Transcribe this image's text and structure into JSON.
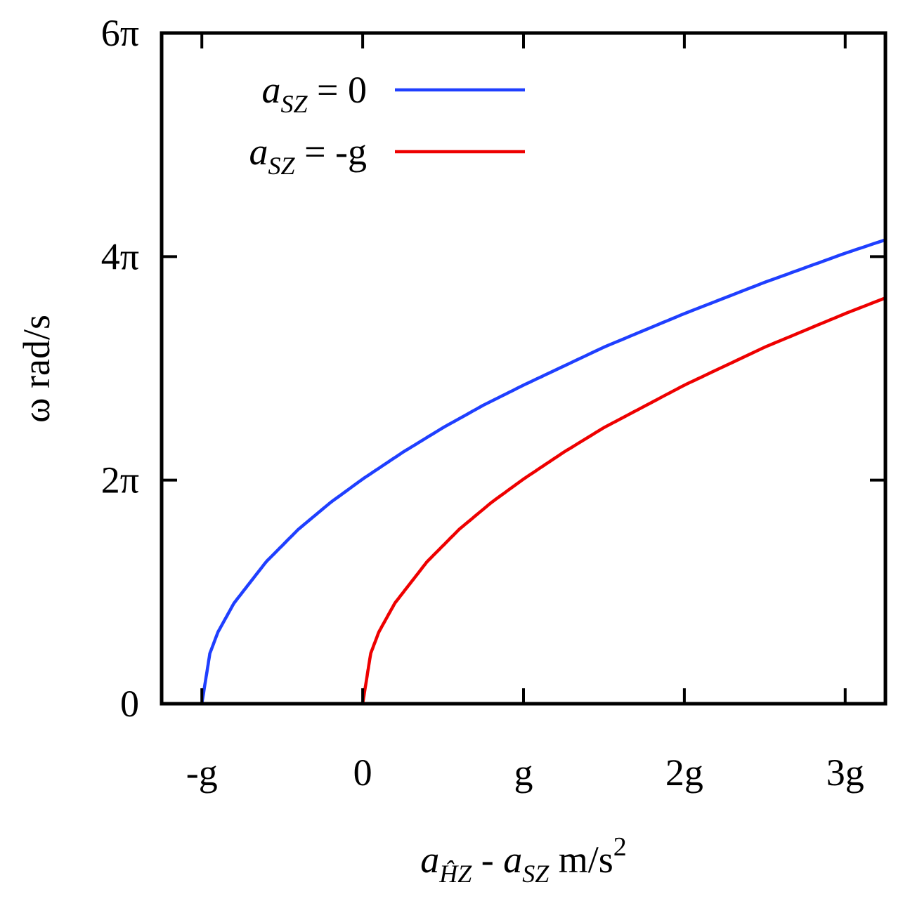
{
  "chart_data": {
    "type": "line",
    "title": "",
    "xlabel": {
      "main": "a",
      "sub": "ĤZ",
      "rest1": " - ",
      "main2": "a",
      "sub2": "SZ",
      "unit": " m/s",
      "sup": "2"
    },
    "ylabel": "ω rad/s",
    "xlim": [
      -1.25,
      3.25
    ],
    "ylim": [
      0,
      6
    ],
    "x_ticks": [
      {
        "value": -1,
        "label": "-g"
      },
      {
        "value": 0,
        "label": "0"
      },
      {
        "value": 1,
        "label": "g"
      },
      {
        "value": 2,
        "label": "2g"
      },
      {
        "value": 3,
        "label": "3g"
      }
    ],
    "y_ticks": [
      {
        "value": 0,
        "label": "0"
      },
      {
        "value": 2,
        "label": "2π"
      },
      {
        "value": 4,
        "label": "4π"
      },
      {
        "value": 6,
        "label": "6π"
      }
    ],
    "x_unit": "g",
    "y_unit": "π rad/s",
    "legend_position": "top-left",
    "grid": false,
    "series": [
      {
        "name": "a_SZ = 0",
        "legend": {
          "main": "a",
          "sub": "SZ",
          "rest": " = 0"
        },
        "color": "#1f3fff",
        "x": [
          -1.0,
          -0.95,
          -0.9,
          -0.8,
          -0.6,
          -0.4,
          -0.2,
          0.0,
          0.25,
          0.5,
          0.75,
          1.0,
          1.5,
          2.0,
          2.5,
          3.0,
          3.25
        ],
        "y": [
          0.0,
          0.45,
          0.64,
          0.9,
          1.27,
          1.56,
          1.8,
          2.01,
          2.25,
          2.47,
          2.67,
          2.85,
          3.19,
          3.49,
          3.77,
          4.03,
          4.15
        ]
      },
      {
        "name": "a_SZ = -g",
        "legend": {
          "main": "a",
          "sub": "SZ",
          "rest": " = -g"
        },
        "color": "#ee0000",
        "x": [
          0.0,
          0.05,
          0.1,
          0.2,
          0.4,
          0.6,
          0.8,
          1.0,
          1.25,
          1.5,
          2.0,
          2.5,
          3.0,
          3.25
        ],
        "y": [
          0.0,
          0.45,
          0.64,
          0.9,
          1.27,
          1.56,
          1.8,
          2.01,
          2.25,
          2.47,
          2.85,
          3.19,
          3.49,
          3.63
        ]
      }
    ]
  }
}
